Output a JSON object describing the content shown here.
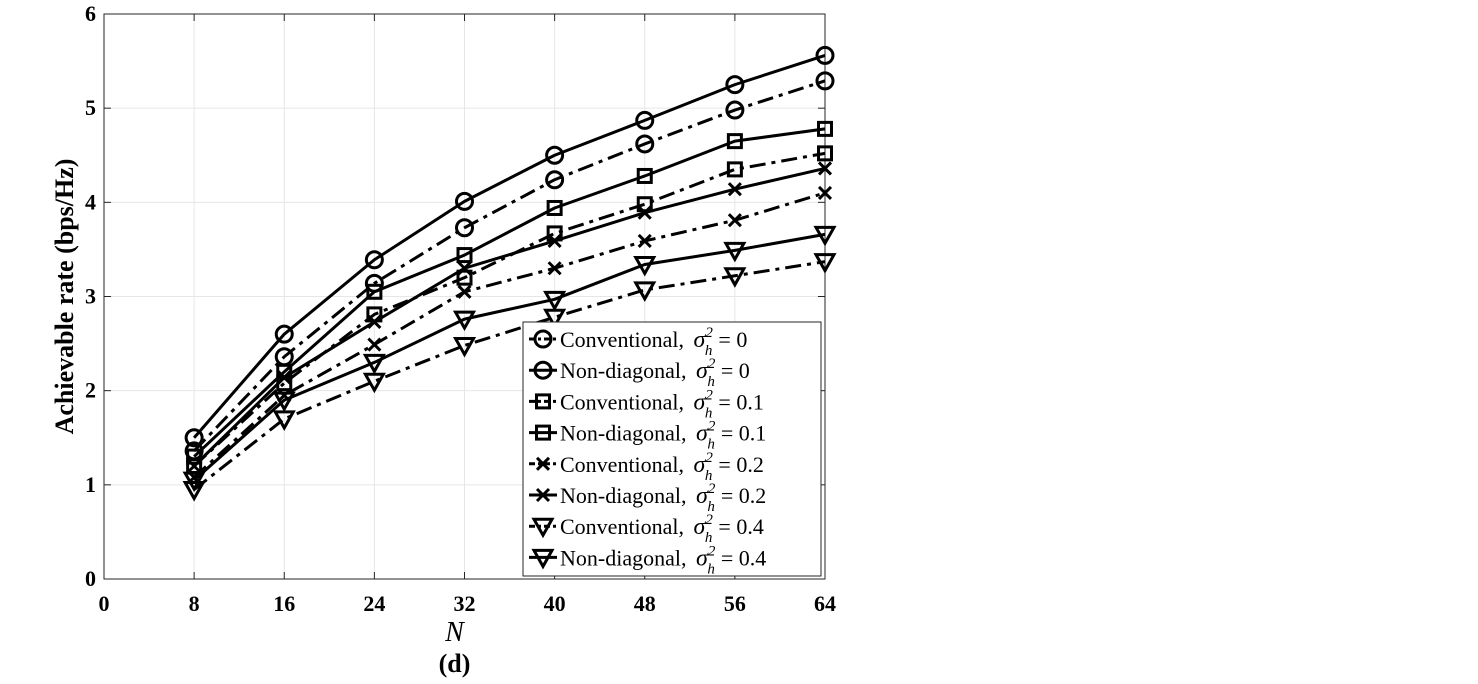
{
  "chart_data": {
    "type": "line",
    "caption": "(d)",
    "xlabel": "N",
    "ylabel": "Achievable rate (bps/Hz)",
    "xlim": [
      0,
      64
    ],
    "ylim": [
      0,
      6
    ],
    "xticks": [
      0,
      8,
      16,
      24,
      32,
      40,
      48,
      56,
      64
    ],
    "yticks": [
      0,
      1,
      2,
      3,
      4,
      5,
      6
    ],
    "grid": true,
    "legend_placement": "bottom-right",
    "x": [
      8,
      16,
      24,
      32,
      40,
      48,
      56,
      64
    ],
    "series": [
      {
        "name": "Conventional, σ_h^2 = 0",
        "label_prefix": "Conventional,",
        "sigma_value": "0",
        "marker": "circle",
        "line": "dashdot",
        "values": [
          1.36,
          2.36,
          3.14,
          3.73,
          4.24,
          4.62,
          4.98,
          5.29
        ]
      },
      {
        "name": "Non-diagonal, σ_h^2 = 0",
        "label_prefix": "Non-diagonal,",
        "sigma_value": "0",
        "marker": "circle",
        "line": "solid",
        "values": [
          1.5,
          2.6,
          3.39,
          4.01,
          4.5,
          4.87,
          5.25,
          5.56
        ]
      },
      {
        "name": "Conventional, σ_h^2 = 0.1",
        "label_prefix": "Conventional,",
        "sigma_value": "0.1",
        "marker": "square",
        "line": "dashdot",
        "values": [
          1.2,
          2.08,
          2.81,
          3.2,
          3.67,
          3.98,
          4.35,
          4.52
        ]
      },
      {
        "name": "Non-diagonal, σ_h^2 = 0.1",
        "label_prefix": "Non-diagonal,",
        "sigma_value": "0.1",
        "marker": "square",
        "line": "solid",
        "values": [
          1.3,
          2.2,
          3.05,
          3.44,
          3.94,
          4.28,
          4.65,
          4.78
        ]
      },
      {
        "name": "Conventional, σ_h^2 = 0.2",
        "label_prefix": "Conventional,",
        "sigma_value": "0.2",
        "marker": "x",
        "line": "dashdot",
        "values": [
          1.08,
          1.95,
          2.49,
          3.05,
          3.3,
          3.59,
          3.81,
          4.1
        ]
      },
      {
        "name": "Non-diagonal, σ_h^2 = 0.2",
        "label_prefix": "Non-diagonal,",
        "sigma_value": "0.2",
        "marker": "x",
        "line": "solid",
        "values": [
          1.2,
          2.14,
          2.73,
          3.3,
          3.59,
          3.89,
          4.14,
          4.36
        ]
      },
      {
        "name": "Conventional, σ_h^2 = 0.4",
        "label_prefix": "Conventional,",
        "sigma_value": "0.4",
        "marker": "triangle-down",
        "line": "dashdot",
        "values": [
          0.95,
          1.7,
          2.1,
          2.48,
          2.78,
          3.07,
          3.22,
          3.37
        ]
      },
      {
        "name": "Non-diagonal, σ_h^2 = 0.4",
        "label_prefix": "Non-diagonal,",
        "sigma_value": "0.4",
        "marker": "triangle-down",
        "line": "solid",
        "values": [
          1.05,
          1.9,
          2.3,
          2.76,
          2.97,
          3.34,
          3.49,
          3.66
        ]
      }
    ]
  }
}
